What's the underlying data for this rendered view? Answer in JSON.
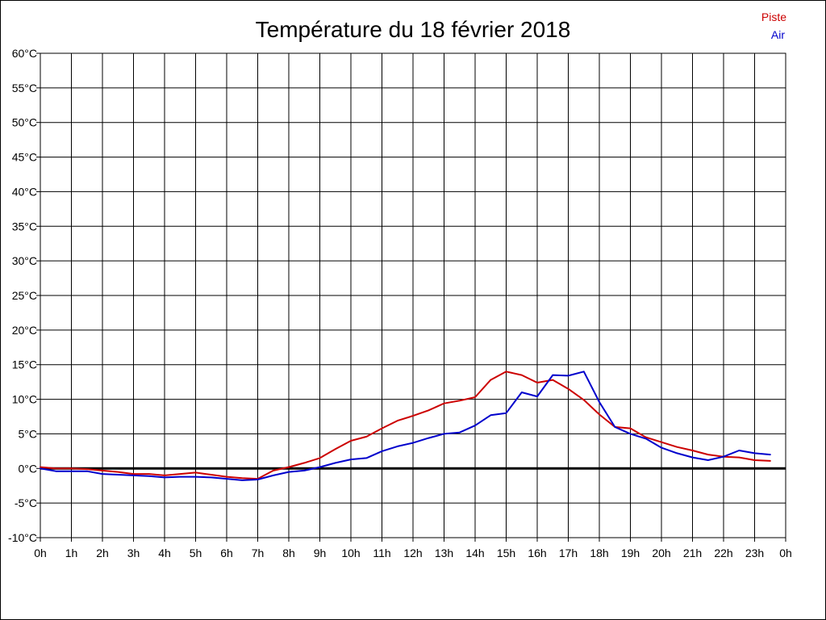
{
  "chart_data": {
    "type": "line",
    "title": "Température du 18 février 2018",
    "xlabel": "",
    "ylabel": "",
    "xlim": [
      0,
      24
    ],
    "ylim": [
      -10,
      60
    ],
    "grid": true,
    "legend_position": "top-right",
    "x_ticks": [
      "0h",
      "1h",
      "2h",
      "3h",
      "4h",
      "5h",
      "6h",
      "7h",
      "8h",
      "9h",
      "10h",
      "11h",
      "12h",
      "13h",
      "14h",
      "15h",
      "16h",
      "17h",
      "18h",
      "19h",
      "20h",
      "21h",
      "22h",
      "23h",
      "0h"
    ],
    "y_ticks": [
      "60°C",
      "55°C",
      "50°C",
      "45°C",
      "40°C",
      "35°C",
      "30°C",
      "25°C",
      "20°C",
      "15°C",
      "10°C",
      "5°C",
      "0°C",
      "-5°C",
      "-10°C"
    ],
    "x": [
      0,
      0.5,
      1,
      1.5,
      2,
      2.5,
      3,
      3.5,
      4,
      4.5,
      5,
      5.5,
      6,
      6.5,
      7,
      7.5,
      8,
      8.5,
      9,
      9.5,
      10,
      10.5,
      11,
      11.5,
      12,
      12.5,
      13,
      13.5,
      14,
      14.5,
      15,
      15.5,
      16,
      16.5,
      17,
      17.5,
      18,
      18.5,
      19,
      19.5,
      20,
      20.5,
      21,
      21.5,
      22,
      22.5,
      23,
      23.5
    ],
    "series": [
      {
        "name": "Piste",
        "color": "#cc0000",
        "values": [
          0.2,
          0,
          0,
          -0.1,
          -0.3,
          -0.5,
          -0.8,
          -0.8,
          -1,
          -0.8,
          -0.6,
          -0.9,
          -1.2,
          -1.4,
          -1.5,
          -0.3,
          0.2,
          0.8,
          1.5,
          2.8,
          4,
          4.6,
          5.8,
          6.9,
          7.6,
          8.4,
          9.4,
          9.8,
          10.3,
          12.8,
          14,
          13.5,
          12.4,
          12.8,
          11.5,
          9.9,
          7.8,
          6,
          5.8,
          4.5,
          3.8,
          3.1,
          2.6,
          2,
          1.7,
          1.6,
          1.2,
          1.1
        ]
      },
      {
        "name": "Air",
        "color": "#0000cc",
        "values": [
          0,
          -0.4,
          -0.4,
          -0.4,
          -0.8,
          -0.9,
          -1,
          -1.1,
          -1.3,
          -1.2,
          -1.2,
          -1.3,
          -1.5,
          -1.7,
          -1.6,
          -1,
          -0.5,
          -0.3,
          0.2,
          0.8,
          1.3,
          1.5,
          2.5,
          3.2,
          3.7,
          4.4,
          5,
          5.2,
          6.2,
          7.7,
          8,
          11,
          10.4,
          13.5,
          13.4,
          14,
          9.6,
          6,
          5,
          4.3,
          3,
          2.2,
          1.6,
          1.2,
          1.7,
          2.6,
          2.2,
          2
        ]
      }
    ],
    "baseline": {
      "y": 0,
      "color": "#000000"
    }
  }
}
